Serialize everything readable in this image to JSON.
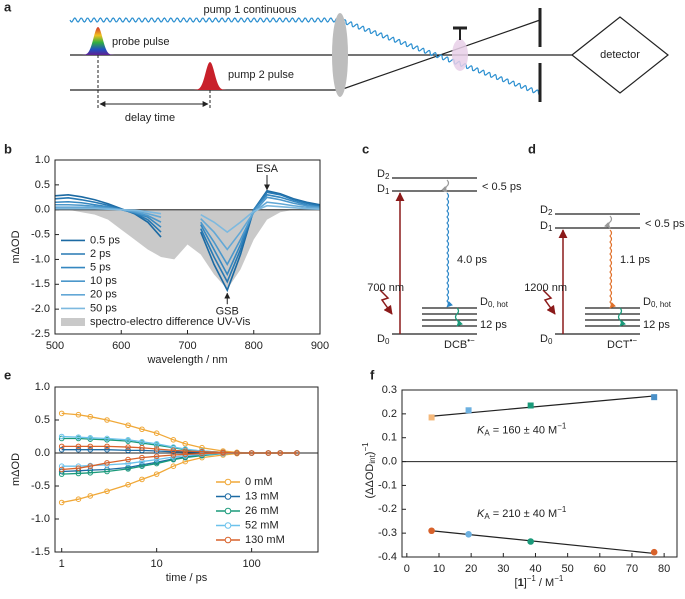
{
  "panel_labels": [
    "a",
    "b",
    "c",
    "d",
    "e",
    "f"
  ],
  "setup": {
    "pump1": "pump 1 continuous",
    "probe": "probe pulse",
    "pump2": "pump 2 pulse",
    "delay": "delay time",
    "detector": "detector"
  },
  "level_c": {
    "d2": {
      "base": "D",
      "sub": "2"
    },
    "d1": {
      "base": "D",
      "sub": "1"
    },
    "fast": "< 0.5 ps",
    "decay": "4.0 ps",
    "excitation": "700 nm",
    "hot": {
      "base": "D",
      "sub": "0, hot"
    },
    "cool": "12 ps",
    "d0": {
      "base": "D",
      "sub": "0"
    },
    "species": {
      "base": "DCB",
      "sup": "•−"
    }
  },
  "level_d": {
    "d2": {
      "base": "D",
      "sub": "2"
    },
    "d1": {
      "base": "D",
      "sub": "1"
    },
    "fast": "< 0.5 ps",
    "decay": "1.1 ps",
    "excitation": "1200 nm",
    "hot": {
      "base": "D",
      "sub": "0, hot"
    },
    "cool": "12 ps",
    "d0": {
      "base": "D",
      "sub": "0"
    },
    "species": {
      "base": "DCT",
      "sup": "•−"
    }
  },
  "chart_data": [
    {
      "type": "line",
      "ylabel": "mΔOD",
      "xlabel": "wavelength / nm",
      "annotations": [
        "ESA",
        "GSB"
      ],
      "legend": "lower left",
      "x": [
        500,
        520,
        540,
        560,
        580,
        600,
        620,
        640,
        660,
        680,
        700,
        720,
        740,
        760,
        780,
        800,
        820,
        840,
        860,
        880,
        900
      ],
      "series": [
        {
          "name": "0.5 ps",
          "color": "#1c6aa3",
          "values": [
            0.28,
            0.3,
            0.26,
            0.2,
            0.12,
            0.02,
            -0.08,
            -0.25,
            -0.55,
            null,
            null,
            -0.45,
            -1.1,
            -1.62,
            -0.9,
            0.0,
            0.38,
            0.32,
            0.22,
            0.15,
            0.1
          ]
        },
        {
          "name": "2 ps",
          "color": "#2678b3",
          "values": [
            0.22,
            0.24,
            0.2,
            0.15,
            0.09,
            0.01,
            -0.07,
            -0.2,
            -0.45,
            null,
            null,
            -0.38,
            -0.95,
            -1.45,
            -0.8,
            0.0,
            0.35,
            0.3,
            0.2,
            0.13,
            0.08
          ]
        },
        {
          "name": "5 ps",
          "color": "#3587c0",
          "values": [
            0.15,
            0.16,
            0.14,
            0.1,
            0.06,
            0.0,
            -0.06,
            -0.15,
            -0.35,
            null,
            null,
            -0.3,
            -0.8,
            -1.3,
            -0.7,
            0.0,
            0.3,
            0.25,
            0.17,
            0.1,
            0.06
          ]
        },
        {
          "name": "10 ps",
          "color": "#4b97cb",
          "values": [
            0.1,
            0.1,
            0.09,
            0.07,
            0.04,
            0.0,
            -0.05,
            -0.12,
            -0.25,
            null,
            null,
            -0.25,
            -0.65,
            -1.1,
            -0.6,
            -0.05,
            0.25,
            0.2,
            0.13,
            0.08,
            0.05
          ]
        },
        {
          "name": "20 ps",
          "color": "#63a8d6",
          "values": [
            0.05,
            0.05,
            0.05,
            0.04,
            0.02,
            0.0,
            -0.03,
            -0.08,
            -0.15,
            null,
            null,
            -0.18,
            -0.45,
            -0.8,
            -0.45,
            -0.05,
            0.15,
            0.12,
            0.08,
            0.05,
            0.03
          ]
        },
        {
          "name": "50 ps",
          "color": "#7db9df",
          "values": [
            0.02,
            0.02,
            0.02,
            0.02,
            0.01,
            0.0,
            -0.01,
            -0.04,
            -0.08,
            null,
            null,
            -0.1,
            -0.25,
            -0.45,
            -0.25,
            -0.03,
            0.08,
            0.06,
            0.04,
            0.02,
            0.01
          ]
        },
        {
          "name": "spectro-electro difference UV-Vis",
          "color": "#c9c9c9",
          "style": "area",
          "values": [
            0,
            0,
            -0.05,
            -0.1,
            -0.2,
            -0.4,
            -0.6,
            -0.8,
            -0.95,
            -1.0,
            -0.7,
            -0.9,
            -1.3,
            -1.6,
            -1.2,
            -0.6,
            -0.2,
            -0.05,
            0,
            0,
            0
          ]
        }
      ],
      "xlim": [
        500,
        900
      ],
      "xticks": [
        500,
        600,
        700,
        800,
        900
      ],
      "ylim": [
        -2.5,
        1
      ],
      "yticks": [
        {
          "value": 1,
          "label": "1.0"
        },
        0.5,
        {
          "value": 0,
          "label": "0.0"
        },
        -0.5,
        {
          "value": -1,
          "label": "-1.0"
        },
        -1.5,
        {
          "value": -2,
          "label": "-2.0"
        },
        -2.5
      ]
    },
    {
      "type": "line",
      "log_x": true,
      "ylabel": "mΔOD",
      "xlabel": "time / ps",
      "legend": "lower right",
      "x": [
        1,
        1.5,
        2,
        3,
        5,
        7,
        10,
        15,
        20,
        30,
        50,
        70,
        100,
        150,
        200,
        300
      ],
      "series": [
        {
          "name": "0 mM",
          "color": "#f0a838",
          "values": [
            0.6,
            0.58,
            0.55,
            0.5,
            0.42,
            0.36,
            0.3,
            0.2,
            0.14,
            0.08,
            0.03,
            0.01,
            0,
            0,
            0,
            0
          ],
          "values_2": [
            -0.75,
            -0.7,
            -0.65,
            -0.58,
            -0.48,
            -0.4,
            -0.32,
            -0.2,
            -0.13,
            -0.07,
            -0.03,
            -0.01,
            0,
            0,
            0,
            0
          ]
        },
        {
          "name": "13 mM",
          "color": "#1c6aa3",
          "values": [
            0.05,
            0.05,
            0.05,
            0.05,
            0.04,
            0.04,
            0.03,
            0.02,
            0.02,
            0.01,
            0,
            0,
            0,
            0,
            0,
            0
          ],
          "values_2": [
            -0.28,
            -0.27,
            -0.26,
            -0.25,
            -0.22,
            -0.18,
            -0.14,
            -0.09,
            -0.06,
            -0.03,
            -0.01,
            0,
            0,
            0,
            0,
            0
          ]
        },
        {
          "name": "26 mM",
          "color": "#1a9a7a",
          "values": [
            0.22,
            0.22,
            0.21,
            0.2,
            0.18,
            0.15,
            0.12,
            0.08,
            0.05,
            0.03,
            0.01,
            0,
            0,
            0,
            0,
            0
          ],
          "values_2": [
            -0.32,
            -0.31,
            -0.3,
            -0.28,
            -0.24,
            -0.2,
            -0.16,
            -0.1,
            -0.07,
            -0.04,
            -0.01,
            0,
            0,
            0,
            0,
            0
          ]
        },
        {
          "name": "52 mM",
          "color": "#6cc2ec",
          "values": [
            0.25,
            0.24,
            0.23,
            0.22,
            0.2,
            0.17,
            0.14,
            0.09,
            0.06,
            0.03,
            0.01,
            0,
            0,
            0,
            0,
            0
          ],
          "values_2": [
            -0.2,
            -0.2,
            -0.19,
            -0.18,
            -0.16,
            -0.13,
            -0.1,
            -0.06,
            -0.04,
            -0.02,
            -0.01,
            0,
            0,
            0,
            0,
            0
          ]
        },
        {
          "name": "130 mM",
          "color": "#d8622b",
          "values": [
            0.1,
            0.1,
            0.1,
            0.1,
            0.09,
            0.08,
            0.06,
            0.04,
            0.03,
            0.02,
            0.01,
            0,
            0,
            0,
            0,
            0
          ],
          "values_2": [
            -0.25,
            -0.23,
            -0.2,
            -0.15,
            -0.1,
            -0.07,
            -0.05,
            -0.03,
            -0.02,
            -0.01,
            0,
            0,
            0,
            0,
            0,
            0
          ]
        }
      ],
      "xlim": [
        0.85,
        500
      ],
      "xticks": [
        1,
        10,
        100
      ],
      "ylim": [
        -1.5,
        1
      ],
      "yticks": [
        {
          "value": 1,
          "label": "1.0"
        },
        0.5,
        {
          "value": 0,
          "label": "0.0"
        },
        -0.5,
        {
          "value": -1,
          "label": "-1.0"
        },
        -1.5
      ]
    },
    {
      "type": "scatter",
      "ylabel": [
        "(ΔΔOD",
        "int",
        ")",
        "−1"
      ],
      "xlabel": [
        "[",
        "1",
        "]",
        "−1",
        " / M",
        "−1"
      ],
      "annotations": [
        [
          "K",
          "A",
          " = 160 ± 40 M",
          "−1"
        ],
        [
          "K",
          "A",
          " = 210 ± 40 M",
          "−1"
        ]
      ],
      "x": [
        7.7,
        19.2,
        38.5,
        76.9
      ],
      "series": [
        {
          "marker": "square",
          "colors": [
            "#f5b87a",
            "#6cb0e0",
            "#1a9a7a",
            "#4a90c8"
          ],
          "values": [
            0.185,
            0.215,
            0.235,
            0.27
          ]
        },
        {
          "marker": "circle",
          "colors": [
            "#d8622b",
            "#6cb0e0",
            "#1a9a7a",
            "#d8622b"
          ],
          "values": [
            -0.29,
            -0.305,
            -0.335,
            -0.38
          ]
        }
      ],
      "fits": [
        {
          "x": [
            7.7,
            76.9
          ],
          "values": [
            0.19,
            0.275
          ]
        },
        {
          "x": [
            7.7,
            76.9
          ],
          "values": [
            -0.29,
            -0.385
          ]
        }
      ],
      "xlim": [
        -1.5,
        84
      ],
      "xticks": [
        0,
        10,
        20,
        30,
        40,
        50,
        60,
        70,
        80
      ],
      "ylim": [
        -0.4,
        0.3
      ],
      "yticks": [
        0.3,
        0.2,
        0.1,
        {
          "value": 0,
          "label": "0.0"
        },
        -0.1,
        -0.2,
        -0.3,
        -0.4
      ]
    }
  ]
}
